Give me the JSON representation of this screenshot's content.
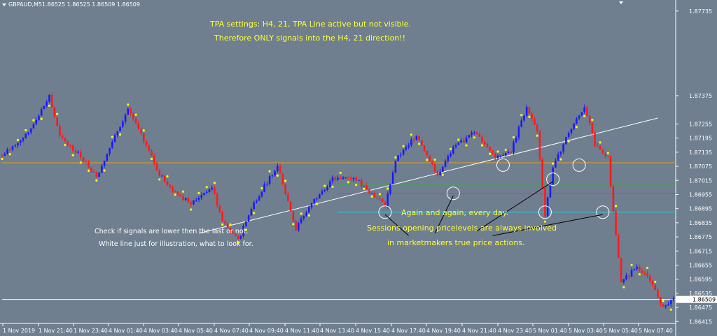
{
  "window": {
    "symbol_tf": "GBPAUD,M5",
    "ohlc": "1.86525 1.86525 1.86509 1.86509"
  },
  "annotations": {
    "tpa_line1": "TPA settings: H4, 21, TPA Line active but not visible.",
    "tpa_line2": "Therefore ONLY signals into the H4, 21 direction!!",
    "check_line1": "Check if signals are lower then the last or not.",
    "check_line2": "White line just for illustration, what to look for.",
    "again_line1": "Again and again, every day.",
    "again_line2": "Sessions opening pricelevels are always involved",
    "again_line3": "in marketmakers true price actions."
  },
  "colors": {
    "background": "#6f7f8f",
    "bull_candle": "#1a1aff",
    "bear_candle": "#ff1a1a",
    "signal_dot": "#ffff00",
    "level_orange": "#e0a020",
    "level_green": "#20c020",
    "level_magenta": "#e020e0",
    "level_cyan": "#20d0e0",
    "trend_line": "#ffffff"
  },
  "chart_data": {
    "type": "candlestick",
    "symbol": "GBPAUD",
    "timeframe": "M5",
    "current_price": "1.86509",
    "ylim": [
      1.8641,
      1.8777
    ],
    "y_ticks": [
      "1.87735",
      "1.87375",
      "1.87255",
      "1.87195",
      "1.87135",
      "1.87075",
      "1.87015",
      "1.86955",
      "1.86895",
      "1.86835",
      "1.86775",
      "1.86715",
      "1.86655",
      "1.86595",
      "1.86535",
      "1.86475",
      "1.86415"
    ],
    "x_ticks": [
      "1 Nov 2019",
      "1 Nov 21:40",
      "1 Nov 23:40",
      "4 Nov 01:40",
      "4 Nov 03:40",
      "4 Nov 05:40",
      "4 Nov 07:40",
      "4 Nov 09:40",
      "4 Nov 11:40",
      "4 Nov 13:40",
      "4 Nov 15:40",
      "4 Nov 17:40",
      "4 Nov 19:40",
      "4 Nov 21:40",
      "4 Nov 23:40",
      "5 Nov 01:40",
      "5 Nov 03:40",
      "5 Nov 05:40",
      "5 Nov 07:40"
    ],
    "levels": [
      {
        "name": "orange",
        "price": 1.8709
      },
      {
        "name": "green",
        "price": 1.87
      },
      {
        "name": "magenta",
        "price": 1.8696
      },
      {
        "name": "cyan",
        "price": 1.8688
      },
      {
        "name": "current",
        "price": 1.86509
      }
    ],
    "trend_line": {
      "start_index": 75,
      "start_price": 1.8679,
      "end_index": 250,
      "end_price": 1.8728
    },
    "circles": [
      {
        "index": 146,
        "price": 1.8688
      },
      {
        "index": 172,
        "price": 1.8696
      },
      {
        "index": 191,
        "price": 1.8708
      },
      {
        "index": 207,
        "price": 1.8688
      },
      {
        "index": 210,
        "price": 1.8702
      },
      {
        "index": 220,
        "price": 1.8708
      },
      {
        "index": 229,
        "price": 1.8688
      }
    ],
    "pointer_lines": [
      {
        "from_index": 146,
        "from_price": 1.8687,
        "to_index": 155,
        "to_price": 1.8678
      },
      {
        "from_index": 172,
        "from_price": 1.8695,
        "to_index": 165,
        "to_price": 1.8679
      },
      {
        "from_index": 210,
        "from_price": 1.8701,
        "to_index": 181,
        "to_price": 1.868
      },
      {
        "from_index": 229,
        "from_price": 1.8687,
        "to_index": 187,
        "to_price": 1.8678
      }
    ],
    "price_path": [
      [
        0,
        1.8712
      ],
      [
        10,
        1.8722
      ],
      [
        18,
        1.8737
      ],
      [
        22,
        1.872
      ],
      [
        30,
        1.8712
      ],
      [
        36,
        1.8703
      ],
      [
        42,
        1.8718
      ],
      [
        48,
        1.8732
      ],
      [
        55,
        1.8716
      ],
      [
        60,
        1.8704
      ],
      [
        66,
        1.8696
      ],
      [
        72,
        1.8692
      ],
      [
        80,
        1.8699
      ],
      [
        84,
        1.8684
      ],
      [
        90,
        1.8676
      ],
      [
        96,
        1.8692
      ],
      [
        105,
        1.8708
      ],
      [
        112,
        1.8681
      ],
      [
        118,
        1.8692
      ],
      [
        126,
        1.8702
      ],
      [
        134,
        1.8703
      ],
      [
        140,
        1.8697
      ],
      [
        146,
        1.8691
      ],
      [
        150,
        1.871
      ],
      [
        158,
        1.8721
      ],
      [
        166,
        1.8704
      ],
      [
        172,
        1.8715
      ],
      [
        180,
        1.8722
      ],
      [
        188,
        1.8712
      ],
      [
        194,
        1.8714
      ],
      [
        200,
        1.8733
      ],
      [
        204,
        1.8722
      ],
      [
        207,
        1.8687
      ],
      [
        210,
        1.8707
      ],
      [
        216,
        1.8722
      ],
      [
        222,
        1.8733
      ],
      [
        226,
        1.8717
      ],
      [
        231,
        1.8711
      ],
      [
        233,
        1.8688
      ],
      [
        236,
        1.8658
      ],
      [
        242,
        1.8665
      ],
      [
        248,
        1.8658
      ],
      [
        251,
        1.8648
      ],
      [
        256,
        1.8651
      ]
    ]
  }
}
